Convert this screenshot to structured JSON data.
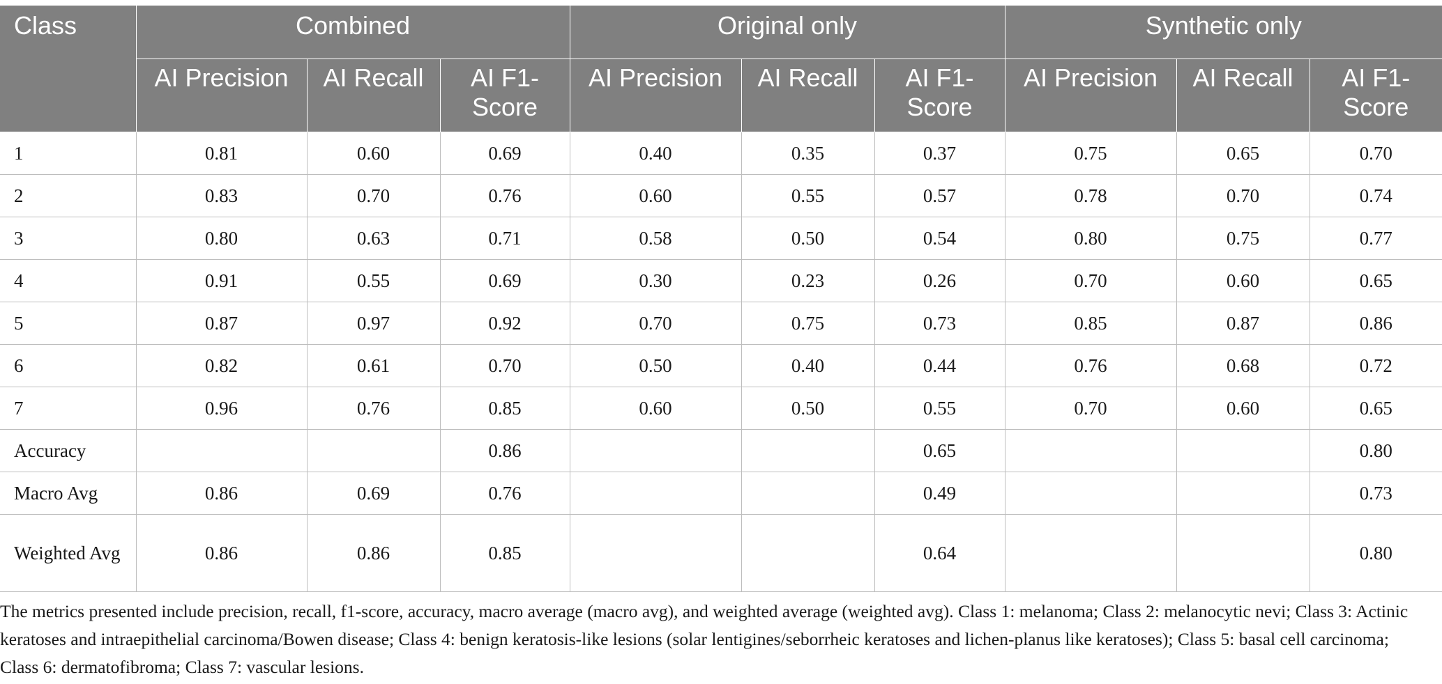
{
  "table": {
    "class_header": "Class",
    "groups": [
      "Combined",
      "Original only",
      "Synthetic only"
    ],
    "subheaders": [
      "AI Precision",
      "AI Recall",
      "AI F1-Score"
    ],
    "rows": [
      {
        "label": "1",
        "cells": [
          "0.81",
          "0.60",
          "0.69",
          "0.40",
          "0.35",
          "0.37",
          "0.75",
          "0.65",
          "0.70"
        ]
      },
      {
        "label": "2",
        "cells": [
          "0.83",
          "0.70",
          "0.76",
          "0.60",
          "0.55",
          "0.57",
          "0.78",
          "0.70",
          "0.74"
        ]
      },
      {
        "label": "3",
        "cells": [
          "0.80",
          "0.63",
          "0.71",
          "0.58",
          "0.50",
          "0.54",
          "0.80",
          "0.75",
          "0.77"
        ]
      },
      {
        "label": "4",
        "cells": [
          "0.91",
          "0.55",
          "0.69",
          "0.30",
          "0.23",
          "0.26",
          "0.70",
          "0.60",
          "0.65"
        ]
      },
      {
        "label": "5",
        "cells": [
          "0.87",
          "0.97",
          "0.92",
          "0.70",
          "0.75",
          "0.73",
          "0.85",
          "0.87",
          "0.86"
        ]
      },
      {
        "label": "6",
        "cells": [
          "0.82",
          "0.61",
          "0.70",
          "0.50",
          "0.40",
          "0.44",
          "0.76",
          "0.68",
          "0.72"
        ]
      },
      {
        "label": "7",
        "cells": [
          "0.96",
          "0.76",
          "0.85",
          "0.60",
          "0.50",
          "0.55",
          "0.70",
          "0.60",
          "0.65"
        ]
      },
      {
        "label": "Accuracy",
        "cells": [
          "",
          "",
          "0.86",
          "",
          "",
          "0.65",
          "",
          "",
          "0.80"
        ]
      },
      {
        "label": "Macro Avg",
        "cells": [
          "0.86",
          "0.69",
          "0.76",
          "",
          "",
          "0.49",
          "",
          "",
          "0.73"
        ]
      },
      {
        "label": "Weighted Avg",
        "cells": [
          "0.86",
          "0.86",
          "0.85",
          "",
          "",
          "0.64",
          "",
          "",
          "0.80"
        ]
      }
    ]
  },
  "footnote": "The metrics presented include precision, recall, f1-score, accuracy, macro average (macro avg), and weighted average (weighted avg). Class 1: melanoma; Class 2: melanocytic nevi; Class 3: Actinic keratoses and intraepithelial carcinoma/Bowen disease; Class 4: benign keratosis-like lesions (solar lentigines/seborrheic keratoses and lichen-planus like keratoses); Class 5: basal cell carcinoma; Class 6: dermatofibroma; Class 7: vascular lesions."
}
